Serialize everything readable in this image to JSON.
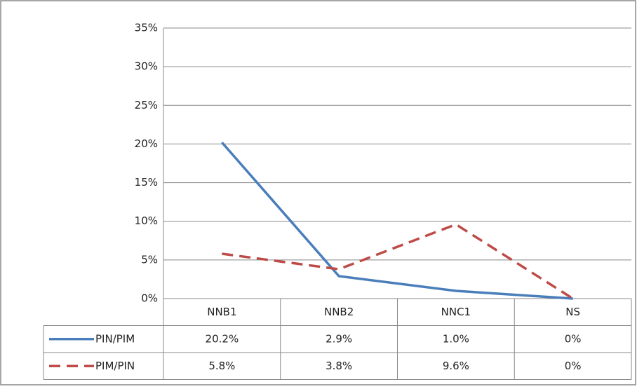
{
  "chart_data": {
    "type": "line",
    "categories": [
      "NNB1",
      "NNB2",
      "NNC1",
      "NS"
    ],
    "series": [
      {
        "name": "PIN/PIM",
        "color": "#4a7ebb",
        "dash": false,
        "values": [
          20.2,
          2.9,
          1.0,
          0
        ],
        "value_labels": [
          "20.2%",
          "2.9%",
          "1.0%",
          "0%"
        ]
      },
      {
        "name": "PIM/PIN",
        "color": "#be4b48",
        "dash": true,
        "values": [
          5.8,
          3.8,
          9.6,
          0
        ],
        "value_labels": [
          "5.8%",
          "3.8%",
          "9.6%",
          "0%"
        ]
      }
    ],
    "ylim": [
      0,
      35
    ],
    "yticks": [
      {
        "value": 0,
        "label": "0%"
      },
      {
        "value": 5,
        "label": "5%"
      },
      {
        "value": 10,
        "label": "10%"
      },
      {
        "value": 15,
        "label": "15%"
      },
      {
        "value": 20,
        "label": "20%"
      },
      {
        "value": 25,
        "label": "25%"
      },
      {
        "value": 30,
        "label": "30%"
      },
      {
        "value": 35,
        "label": "35%"
      }
    ],
    "grid": true,
    "data_table": true
  }
}
